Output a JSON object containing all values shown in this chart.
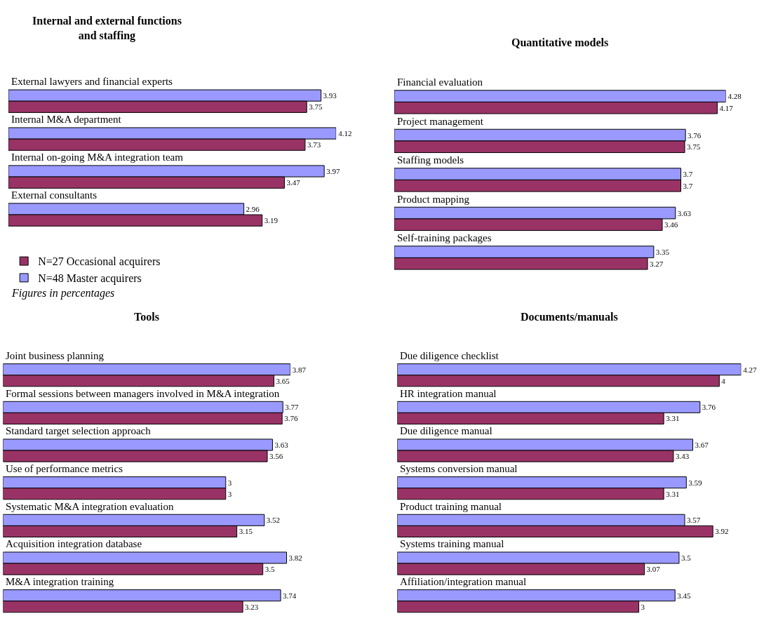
{
  "chart_data": [
    {
      "type": "bar",
      "orientation": "horizontal",
      "title": "Internal and external functions\nand staffing",
      "categories": [
        "External lawyers and financial experts",
        "Internal M&A department",
        "Internal on-going M&A integration team",
        "External consultants"
      ],
      "series": [
        {
          "name": "N=48 Master acquirers",
          "color": "#9999ff",
          "values": [
            3.93,
            4.12,
            3.97,
            2.96
          ]
        },
        {
          "name": "N=27 Occasional acquirers",
          "color": "#993366",
          "values": [
            3.75,
            3.73,
            3.47,
            3.19
          ]
        }
      ],
      "data_labels": true,
      "legend": "bottom left",
      "annotations": [
        "Figures in percentages"
      ]
    },
    {
      "type": "bar",
      "orientation": "horizontal",
      "title": "Quantitative models",
      "categories": [
        "Financial evaluation",
        "Project management",
        "Staffing models",
        "Product mapping",
        "Self-training packages"
      ],
      "series": [
        {
          "color": "#9999ff",
          "values": [
            4.28,
            3.76,
            3.7,
            3.63,
            3.35
          ]
        },
        {
          "color": "#993366",
          "values": [
            4.17,
            3.75,
            3.7,
            3.46,
            3.27
          ]
        }
      ],
      "data_labels": true
    },
    {
      "type": "bar",
      "orientation": "horizontal",
      "title": "Tools",
      "categories": [
        "Joint business planning",
        "Formal sessions between managers involved in M&A integration",
        "Standard target selection approach",
        "Use of performance metrics",
        "Systematic M&A integration evaluation",
        "Acquisition integration database",
        "M&A integration training"
      ],
      "series": [
        {
          "color": "#9999ff",
          "values": [
            3.87,
            3.77,
            3.63,
            3,
            3.52,
            3.82,
            3.74
          ]
        },
        {
          "color": "#993366",
          "values": [
            3.65,
            3.76,
            3.56,
            3,
            3.15,
            3.5,
            3.23
          ]
        }
      ],
      "data_labels": true
    },
    {
      "type": "bar",
      "orientation": "horizontal",
      "title": "Documents/manuals",
      "categories": [
        "Due diligence checklist",
        "HR integration manual",
        "Due diligence manual",
        "Systems conversion manual",
        "Product training manual",
        "Systems training manual",
        "Affiliation/integration manual"
      ],
      "series": [
        {
          "color": "#9999ff",
          "values": [
            4.27,
            3.76,
            3.67,
            3.59,
            3.57,
            3.5,
            3.45
          ]
        },
        {
          "color": "#993366",
          "values": [
            4,
            3.31,
            3.43,
            3.31,
            3.92,
            3.07,
            3
          ]
        }
      ],
      "data_labels": true
    }
  ]
}
